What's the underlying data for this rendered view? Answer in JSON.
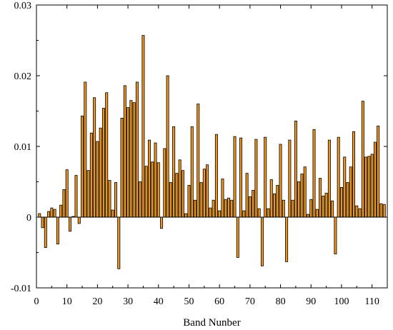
{
  "chart_data": {
    "type": "bar",
    "title": "",
    "xlabel": "Band Nunber",
    "ylabel": "",
    "xlim": [
      0,
      115
    ],
    "ylim": [
      -0.01,
      0.03
    ],
    "xticks": [
      0,
      10,
      20,
      30,
      40,
      50,
      60,
      70,
      80,
      90,
      100,
      110
    ],
    "yticks": [
      -0.01,
      0,
      0.01,
      0.02,
      0.03
    ],
    "ytick_labels": [
      "-0.01",
      "0",
      "0.01",
      "0.02",
      "0.03"
    ],
    "grid": false,
    "legend": "none",
    "bar_color": "#f0961e",
    "bar_edge_color": "#000000",
    "x": [
      1,
      2,
      3,
      4,
      5,
      6,
      7,
      8,
      9,
      10,
      11,
      12,
      13,
      14,
      15,
      16,
      17,
      18,
      19,
      20,
      21,
      22,
      23,
      24,
      25,
      26,
      27,
      28,
      29,
      30,
      31,
      32,
      33,
      34,
      35,
      36,
      37,
      38,
      39,
      40,
      41,
      42,
      43,
      44,
      45,
      46,
      47,
      48,
      49,
      50,
      51,
      52,
      53,
      54,
      55,
      56,
      57,
      58,
      59,
      60,
      61,
      62,
      63,
      64,
      65,
      66,
      67,
      68,
      69,
      70,
      71,
      72,
      73,
      74,
      75,
      76,
      77,
      78,
      79,
      80,
      81,
      82,
      83,
      84,
      85,
      86,
      87,
      88,
      89,
      90,
      91,
      92,
      93,
      94,
      95,
      96,
      97,
      98,
      99,
      100,
      101,
      102,
      103,
      104,
      105,
      106,
      107,
      108,
      109,
      110,
      111,
      112,
      113,
      114
    ],
    "values": [
      0.0005,
      -0.0015,
      -0.0043,
      0.0008,
      0.0013,
      0.0011,
      -0.0038,
      0.0017,
      0.0039,
      0.0067,
      -0.002,
      0.0001,
      0.0059,
      -0.0009,
      0.0143,
      0.0191,
      0.0066,
      0.0119,
      0.0169,
      0.0107,
      0.0126,
      0.0154,
      0.0176,
      0.0052,
      0.001,
      0.0049,
      -0.0073,
      0.014,
      0.0186,
      0.0155,
      0.0165,
      0.0162,
      0.0191,
      0.005,
      0.0257,
      0.0072,
      0.0109,
      0.0078,
      0.0105,
      0.0077,
      -0.0016,
      0.0097,
      0.02,
      0.0049,
      0.0128,
      0.0062,
      0.0081,
      0.0066,
      0.0005,
      0.0045,
      0.0128,
      0.0024,
      0.016,
      0.0049,
      0.0068,
      0.0074,
      0.0013,
      0.0024,
      0.0117,
      0.0009,
      0.0054,
      0.0025,
      0.0027,
      0.0024,
      0.0114,
      -0.0057,
      0.0112,
      0.0009,
      0.0062,
      0.0029,
      0.0038,
      0.011,
      0.0012,
      -0.0069,
      0.0113,
      0.0012,
      0.0053,
      0.0033,
      0.0045,
      0.0103,
      0.0024,
      -0.0063,
      0.0109,
      0.0024,
      0.0136,
      0.005,
      0.0061,
      0.0071,
      0.0004,
      0.0025,
      0.0124,
      0.0011,
      0.0055,
      0.003,
      0.0034,
      0.0109,
      0.0023,
      -0.0052,
      0.0113,
      0.0042,
      0.0085,
      0.0049,
      0.0071,
      0.0121,
      0.0016,
      0.0012,
      0.0164,
      0.0085,
      0.0086,
      0.0089,
      0.0106,
      0.0129,
      0.0019,
      0.0018
    ]
  }
}
